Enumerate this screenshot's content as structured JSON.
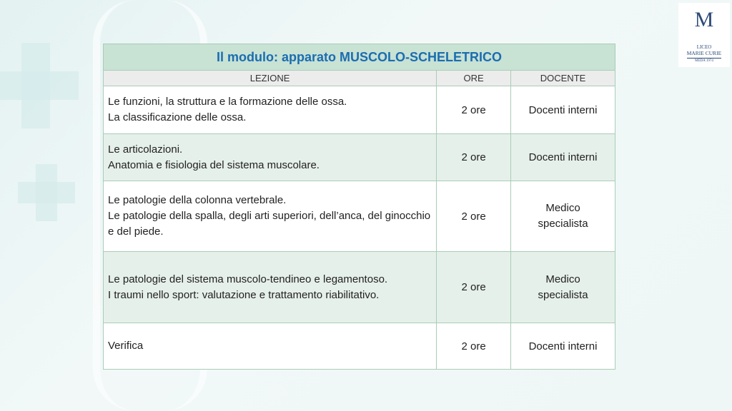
{
  "logo": {
    "line1": "LICEO",
    "line2": "MARIE CURIE",
    "line3": "MEDA 1974"
  },
  "table": {
    "title": "Il modulo: apparato MUSCOLO-SCHELETRICO",
    "headers": [
      "LEZIONE",
      "ORE",
      "DOCENTE"
    ],
    "rows": [
      {
        "lezione": [
          "Le funzioni, la struttura e la formazione delle ossa.",
          "La classificazione delle ossa."
        ],
        "ore": "2 ore",
        "docente": "Docenti interni"
      },
      {
        "lezione": [
          "Le articolazioni.",
          "Anatomia e fisiologia del sistema muscolare."
        ],
        "ore": "2 ore",
        "docente": "Docenti interni"
      },
      {
        "lezione": [
          "Le patologie della colonna vertebrale.",
          "Le patologie della spalla, degli arti superiori, dell’anca, del ginocchio e del piede."
        ],
        "ore": "2 ore",
        "docente": "Medico specialista"
      },
      {
        "lezione": [
          "Le patologie del sistema muscolo-tendineo e legamentoso.",
          "I traumi nello sport: valutazione e trattamento riabilitativo."
        ],
        "ore": "2 ore",
        "docente": "Medico specialista"
      },
      {
        "lezione": [
          "Verifica"
        ],
        "ore": "2 ore",
        "docente": "Docenti interni"
      }
    ]
  }
}
